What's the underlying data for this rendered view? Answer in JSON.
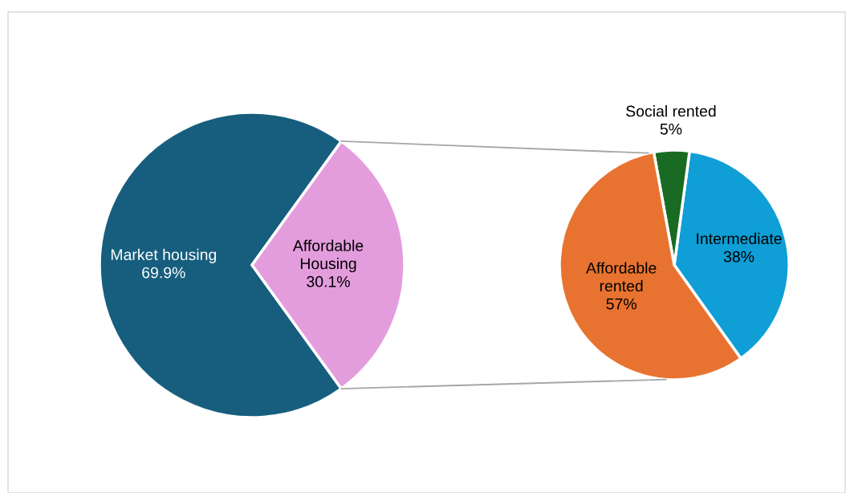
{
  "chart_data": [
    {
      "type": "pie",
      "categories": [
        "Market housing",
        "Affordable\nHousing"
      ],
      "values": [
        69.9,
        30.1
      ],
      "colors": [
        "#175e7e",
        "#e39ddd"
      ],
      "value_labels": [
        "69.9%",
        "30.1%"
      ]
    },
    {
      "type": "pie",
      "categories": [
        "Intermediate",
        "Social rented",
        "Affordable\nrented"
      ],
      "values": [
        38,
        5,
        57
      ],
      "colors": [
        "#0f9ed5",
        "#196b24",
        "#e87330"
      ],
      "value_labels": [
        "38%",
        "5%",
        "57%"
      ]
    }
  ]
}
